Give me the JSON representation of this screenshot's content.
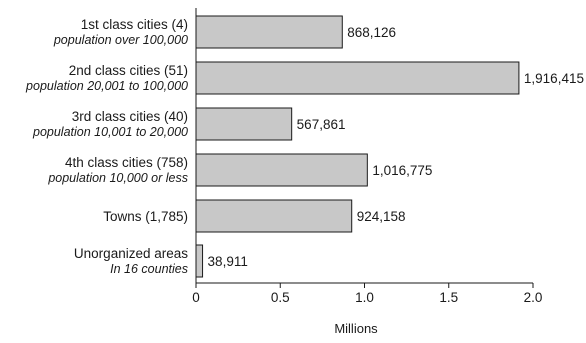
{
  "chart_data": {
    "type": "bar",
    "orientation": "horizontal",
    "categories": [
      {
        "label": "1st class cities (4)",
        "sublabel": "population over 100,000"
      },
      {
        "label": "2nd class cities (51)",
        "sublabel": "population 20,001 to 100,000"
      },
      {
        "label": "3rd class cities (40)",
        "sublabel": "population 10,001 to 20,000"
      },
      {
        "label": "4th class cities (758)",
        "sublabel": "population 10,000 or less"
      },
      {
        "label": "Towns (1,785)",
        "sublabel": ""
      },
      {
        "label": "Unorganized areas",
        "sublabel": "In 16 counties"
      }
    ],
    "values": [
      868126,
      1916415,
      567861,
      1016775,
      924158,
      38911
    ],
    "value_labels": [
      "868,126",
      "1,916,415",
      "567,861",
      "1,016,775",
      "924,158",
      "38,911"
    ],
    "xlabel": "Millions",
    "xlim": [
      0,
      2000000
    ],
    "x_ticks": [
      0,
      500000,
      1000000,
      1500000,
      2000000
    ],
    "x_tick_labels": [
      "0",
      "0.5",
      "1.0",
      "1.5",
      "2.0"
    ],
    "grid": false,
    "colors": {
      "bar_fill": "#c8c8c8",
      "bar_stroke": "#1a1a1a",
      "axis": "#1a1a1a"
    }
  }
}
